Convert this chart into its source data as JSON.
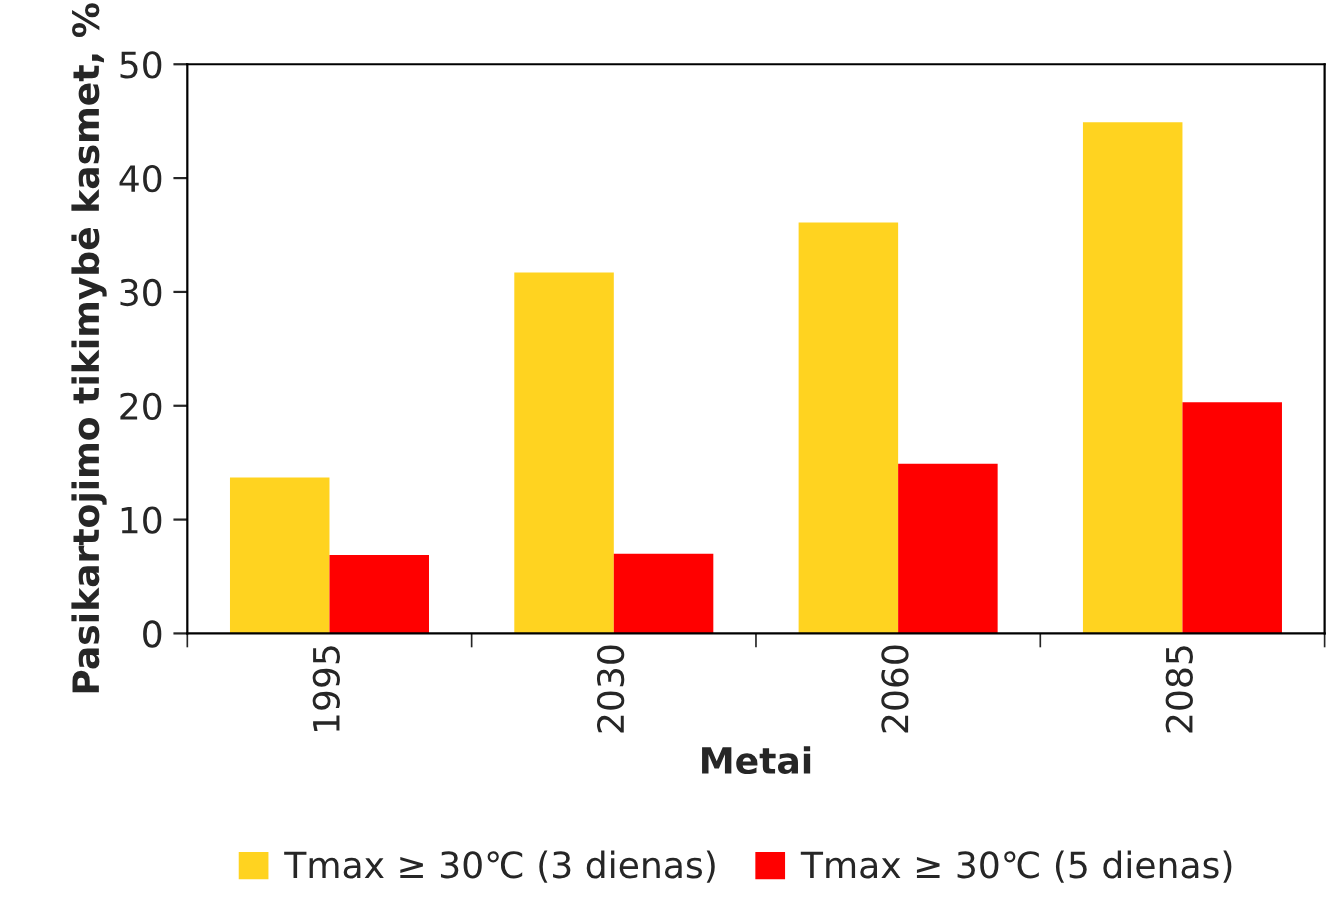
{
  "chart_data": {
    "type": "bar",
    "xlabel": "Metai",
    "ylabel": "Pasikartojimo tikimybė kasmet, %",
    "categories": [
      "1995",
      "2030",
      "2060",
      "2085"
    ],
    "series": [
      {
        "name": "Tmax ≥ 30℃ (3 dienas)",
        "color": "#ffd320",
        "values": [
          13.7,
          31.7,
          36.1,
          44.9
        ]
      },
      {
        "name": "Tmax ≥ 30℃ (5 dienas)",
        "color": "#ff0000",
        "values": [
          6.9,
          7.0,
          14.9,
          20.3
        ]
      }
    ],
    "ylim": [
      0,
      50
    ],
    "yticks": [
      0,
      10,
      20,
      30,
      40,
      50
    ],
    "grid": false,
    "legend": "bottom"
  }
}
